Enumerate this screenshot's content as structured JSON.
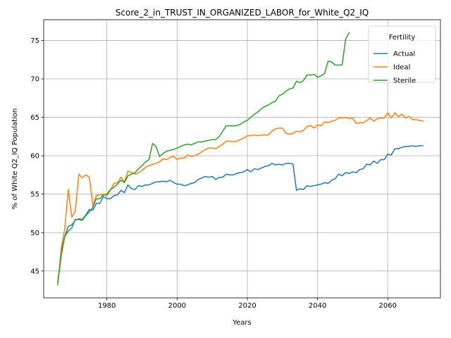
{
  "chart_data": {
    "type": "line",
    "title": "Score_2_in_TRUST_IN_ORGANIZED_LABOR_for_White_Q2_IQ",
    "xlabel": "Years",
    "ylabel": "% of White Q2_IQ Population",
    "xlim": [
      1962,
      2075
    ],
    "ylim": [
      41.5,
      77.7
    ],
    "xticks": [
      1980,
      2000,
      2020,
      2040,
      2060
    ],
    "yticks": [
      45,
      50,
      55,
      60,
      65,
      70,
      75
    ],
    "grid": true,
    "legend": {
      "title": "Fertility",
      "placement": "top-right"
    },
    "series": [
      {
        "name": "Actual",
        "color": "#1f77b4",
        "points": [
          [
            1966,
            43.2
          ],
          [
            1967,
            47.5
          ],
          [
            1968,
            49.5
          ],
          [
            1969,
            50.8
          ],
          [
            1970,
            51.0
          ],
          [
            1971,
            51.6
          ],
          [
            1972,
            51.8
          ],
          [
            1973,
            51.7
          ],
          [
            1974,
            52.3
          ],
          [
            1975,
            53.0
          ],
          [
            1976,
            52.9
          ],
          [
            1977,
            53.8
          ],
          [
            1978,
            53.8
          ],
          [
            1979,
            54.7
          ],
          [
            1980,
            54.4
          ],
          [
            1981,
            54.4
          ],
          [
            1982,
            54.8
          ],
          [
            1983,
            54.9
          ],
          [
            1984,
            55.5
          ],
          [
            1985,
            55.2
          ],
          [
            1986,
            56.2
          ],
          [
            1987,
            55.7
          ],
          [
            1988,
            55.6
          ],
          [
            1989,
            56.1
          ],
          [
            1990,
            56.0
          ],
          [
            1991,
            56.2
          ],
          [
            1992,
            56.2
          ],
          [
            1993,
            56.4
          ],
          [
            1994,
            56.6
          ],
          [
            1995,
            56.6
          ],
          [
            1996,
            56.7
          ],
          [
            1997,
            56.6
          ],
          [
            1998,
            56.8
          ],
          [
            1999,
            56.5
          ],
          [
            2000,
            56.3
          ],
          [
            2001,
            56.3
          ],
          [
            2002,
            56.1
          ],
          [
            2003,
            56.2
          ],
          [
            2004,
            56.4
          ],
          [
            2005,
            56.5
          ],
          [
            2006,
            56.9
          ],
          [
            2007,
            57.1
          ],
          [
            2008,
            57.3
          ],
          [
            2009,
            57.2
          ],
          [
            2010,
            57.3
          ],
          [
            2011,
            56.9
          ],
          [
            2012,
            57.2
          ],
          [
            2013,
            57.2
          ],
          [
            2014,
            57.6
          ],
          [
            2015,
            57.5
          ],
          [
            2016,
            57.5
          ],
          [
            2017,
            57.7
          ],
          [
            2018,
            57.8
          ],
          [
            2019,
            57.9
          ],
          [
            2020,
            58.2
          ],
          [
            2021,
            57.9
          ],
          [
            2022,
            58.3
          ],
          [
            2023,
            58.2
          ],
          [
            2024,
            58.4
          ],
          [
            2025,
            58.6
          ],
          [
            2026,
            58.7
          ],
          [
            2027,
            59.0
          ],
          [
            2028,
            58.8
          ],
          [
            2029,
            58.9
          ],
          [
            2030,
            58.8
          ],
          [
            2031,
            59.0
          ],
          [
            2032,
            59.0
          ],
          [
            2033,
            58.9
          ],
          [
            2034,
            55.5
          ],
          [
            2035,
            55.7
          ],
          [
            2036,
            55.6
          ],
          [
            2037,
            56.1
          ],
          [
            2038,
            56.0
          ],
          [
            2039,
            56.1
          ],
          [
            2040,
            56.2
          ],
          [
            2041,
            56.3
          ],
          [
            2042,
            56.5
          ],
          [
            2043,
            56.4
          ],
          [
            2044,
            56.8
          ],
          [
            2045,
            57.0
          ],
          [
            2046,
            57.6
          ],
          [
            2047,
            57.4
          ],
          [
            2048,
            57.8
          ],
          [
            2049,
            57.7
          ],
          [
            2050,
            57.9
          ],
          [
            2051,
            57.8
          ],
          [
            2052,
            58.2
          ],
          [
            2053,
            58.3
          ],
          [
            2054,
            58.9
          ],
          [
            2055,
            58.8
          ],
          [
            2056,
            59.3
          ],
          [
            2057,
            59.0
          ],
          [
            2058,
            59.5
          ],
          [
            2059,
            59.5
          ],
          [
            2060,
            60.2
          ],
          [
            2061,
            60.1
          ],
          [
            2062,
            60.9
          ],
          [
            2063,
            60.9
          ],
          [
            2064,
            61.1
          ],
          [
            2065,
            61.2
          ],
          [
            2066,
            61.2
          ],
          [
            2067,
            61.3
          ],
          [
            2068,
            61.2
          ],
          [
            2069,
            61.3
          ],
          [
            2070,
            61.3
          ]
        ]
      },
      {
        "name": "Ideal",
        "color": "#ff7f0e",
        "points": [
          [
            1966,
            43.3
          ],
          [
            1967,
            48.0
          ],
          [
            1968,
            50.5
          ],
          [
            1969,
            55.6
          ],
          [
            1970,
            52.0
          ],
          [
            1971,
            52.8
          ],
          [
            1972,
            57.6
          ],
          [
            1973,
            57.1
          ],
          [
            1974,
            57.5
          ],
          [
            1975,
            57.2
          ],
          [
            1976,
            53.5
          ],
          [
            1977,
            54.8
          ],
          [
            1978,
            54.9
          ],
          [
            1979,
            55.0
          ],
          [
            1980,
            54.8
          ],
          [
            1981,
            55.5
          ],
          [
            1982,
            56.4
          ],
          [
            1983,
            56.5
          ],
          [
            1984,
            57.2
          ],
          [
            1985,
            56.6
          ],
          [
            1986,
            58.0
          ],
          [
            1987,
            57.8
          ],
          [
            1988,
            57.6
          ],
          [
            1989,
            57.8
          ],
          [
            1990,
            58.1
          ],
          [
            1991,
            58.5
          ],
          [
            1992,
            58.7
          ],
          [
            1993,
            58.9
          ],
          [
            1994,
            59.0
          ],
          [
            1995,
            59.2
          ],
          [
            1996,
            59.6
          ],
          [
            1997,
            59.5
          ],
          [
            1998,
            59.8
          ],
          [
            1999,
            59.9
          ],
          [
            2000,
            59.5
          ],
          [
            2001,
            59.7
          ],
          [
            2002,
            59.7
          ],
          [
            2003,
            60.1
          ],
          [
            2004,
            59.9
          ],
          [
            2005,
            60.0
          ],
          [
            2006,
            60.2
          ],
          [
            2007,
            60.5
          ],
          [
            2008,
            60.8
          ],
          [
            2009,
            61.0
          ],
          [
            2010,
            61.0
          ],
          [
            2011,
            60.9
          ],
          [
            2012,
            61.2
          ],
          [
            2013,
            61.5
          ],
          [
            2014,
            61.9
          ],
          [
            2015,
            61.9
          ],
          [
            2016,
            61.8
          ],
          [
            2017,
            61.9
          ],
          [
            2018,
            62.1
          ],
          [
            2019,
            62.3
          ],
          [
            2020,
            62.6
          ],
          [
            2021,
            62.6
          ],
          [
            2022,
            62.7
          ],
          [
            2023,
            62.6
          ],
          [
            2024,
            62.7
          ],
          [
            2025,
            62.7
          ],
          [
            2026,
            62.7
          ],
          [
            2027,
            63.2
          ],
          [
            2028,
            63.5
          ],
          [
            2029,
            63.6
          ],
          [
            2030,
            63.6
          ],
          [
            2031,
            62.9
          ],
          [
            2032,
            62.8
          ],
          [
            2033,
            62.9
          ],
          [
            2034,
            63.2
          ],
          [
            2035,
            63.1
          ],
          [
            2036,
            63.3
          ],
          [
            2037,
            63.8
          ],
          [
            2038,
            63.9
          ],
          [
            2039,
            63.6
          ],
          [
            2040,
            64.0
          ],
          [
            2041,
            63.9
          ],
          [
            2042,
            64.4
          ],
          [
            2043,
            64.3
          ],
          [
            2044,
            64.5
          ],
          [
            2045,
            64.6
          ],
          [
            2046,
            64.9
          ],
          [
            2047,
            64.9
          ],
          [
            2048,
            65.0
          ],
          [
            2049,
            64.8
          ],
          [
            2050,
            64.9
          ],
          [
            2051,
            64.2
          ],
          [
            2052,
            64.3
          ],
          [
            2053,
            64.3
          ],
          [
            2054,
            64.6
          ],
          [
            2055,
            64.9
          ],
          [
            2056,
            64.5
          ],
          [
            2057,
            64.8
          ],
          [
            2058,
            64.9
          ],
          [
            2059,
            64.9
          ],
          [
            2060,
            65.6
          ],
          [
            2061,
            64.9
          ],
          [
            2062,
            65.6
          ],
          [
            2063,
            65.1
          ],
          [
            2064,
            65.4
          ],
          [
            2065,
            64.9
          ],
          [
            2066,
            65.1
          ],
          [
            2067,
            64.7
          ],
          [
            2068,
            64.7
          ],
          [
            2069,
            64.6
          ],
          [
            2070,
            64.5
          ]
        ]
      },
      {
        "name": "Sterile",
        "color": "#2ca02c",
        "points": [
          [
            1966,
            43.5
          ],
          [
            1967,
            47.0
          ],
          [
            1968,
            49.5
          ],
          [
            1969,
            50.2
          ],
          [
            1970,
            50.6
          ],
          [
            1971,
            51.7
          ],
          [
            1972,
            51.7
          ],
          [
            1973,
            51.6
          ],
          [
            1974,
            52.2
          ],
          [
            1975,
            52.7
          ],
          [
            1976,
            53.3
          ],
          [
            1977,
            54.4
          ],
          [
            1978,
            54.4
          ],
          [
            1979,
            54.9
          ],
          [
            1980,
            55.0
          ],
          [
            1981,
            55.6
          ],
          [
            1982,
            55.9
          ],
          [
            1983,
            56.3
          ],
          [
            1984,
            56.8
          ],
          [
            1985,
            56.5
          ],
          [
            1986,
            57.4
          ],
          [
            1987,
            57.6
          ],
          [
            1988,
            57.8
          ],
          [
            1989,
            58.3
          ],
          [
            1990,
            58.7
          ],
          [
            1991,
            59.2
          ],
          [
            1992,
            59.5
          ],
          [
            1993,
            61.6
          ],
          [
            1994,
            61.2
          ],
          [
            1995,
            59.9
          ],
          [
            1996,
            60.3
          ],
          [
            1997,
            60.6
          ],
          [
            1998,
            60.7
          ],
          [
            1999,
            60.8
          ],
          [
            2000,
            61.0
          ],
          [
            2001,
            61.2
          ],
          [
            2002,
            61.4
          ],
          [
            2003,
            61.5
          ],
          [
            2004,
            61.4
          ],
          [
            2005,
            61.6
          ],
          [
            2006,
            61.8
          ],
          [
            2007,
            61.8
          ],
          [
            2008,
            61.9
          ],
          [
            2009,
            62.0
          ],
          [
            2010,
            62.1
          ],
          [
            2011,
            62.1
          ],
          [
            2012,
            62.5
          ],
          [
            2013,
            63.2
          ],
          [
            2014,
            63.9
          ],
          [
            2015,
            63.9
          ],
          [
            2016,
            63.9
          ],
          [
            2017,
            63.9
          ],
          [
            2018,
            64.1
          ],
          [
            2019,
            64.4
          ],
          [
            2020,
            64.6
          ],
          [
            2021,
            65.0
          ],
          [
            2022,
            65.4
          ],
          [
            2023,
            65.7
          ],
          [
            2024,
            66.1
          ],
          [
            2025,
            66.4
          ],
          [
            2026,
            66.6
          ],
          [
            2027,
            66.9
          ],
          [
            2028,
            67.1
          ],
          [
            2029,
            67.8
          ],
          [
            2030,
            68.0
          ],
          [
            2031,
            68.4
          ],
          [
            2032,
            68.7
          ],
          [
            2033,
            68.8
          ],
          [
            2034,
            69.7
          ],
          [
            2035,
            69.5
          ],
          [
            2036,
            69.8
          ],
          [
            2037,
            70.5
          ],
          [
            2038,
            70.5
          ],
          [
            2039,
            70.6
          ],
          [
            2040,
            70.2
          ],
          [
            2041,
            70.4
          ],
          [
            2042,
            70.7
          ],
          [
            2043,
            72.3
          ],
          [
            2044,
            72.2
          ],
          [
            2045,
            71.8
          ],
          [
            2046,
            71.8
          ],
          [
            2047,
            71.8
          ],
          [
            2048,
            75.2
          ],
          [
            2049,
            76.0
          ]
        ]
      }
    ]
  }
}
